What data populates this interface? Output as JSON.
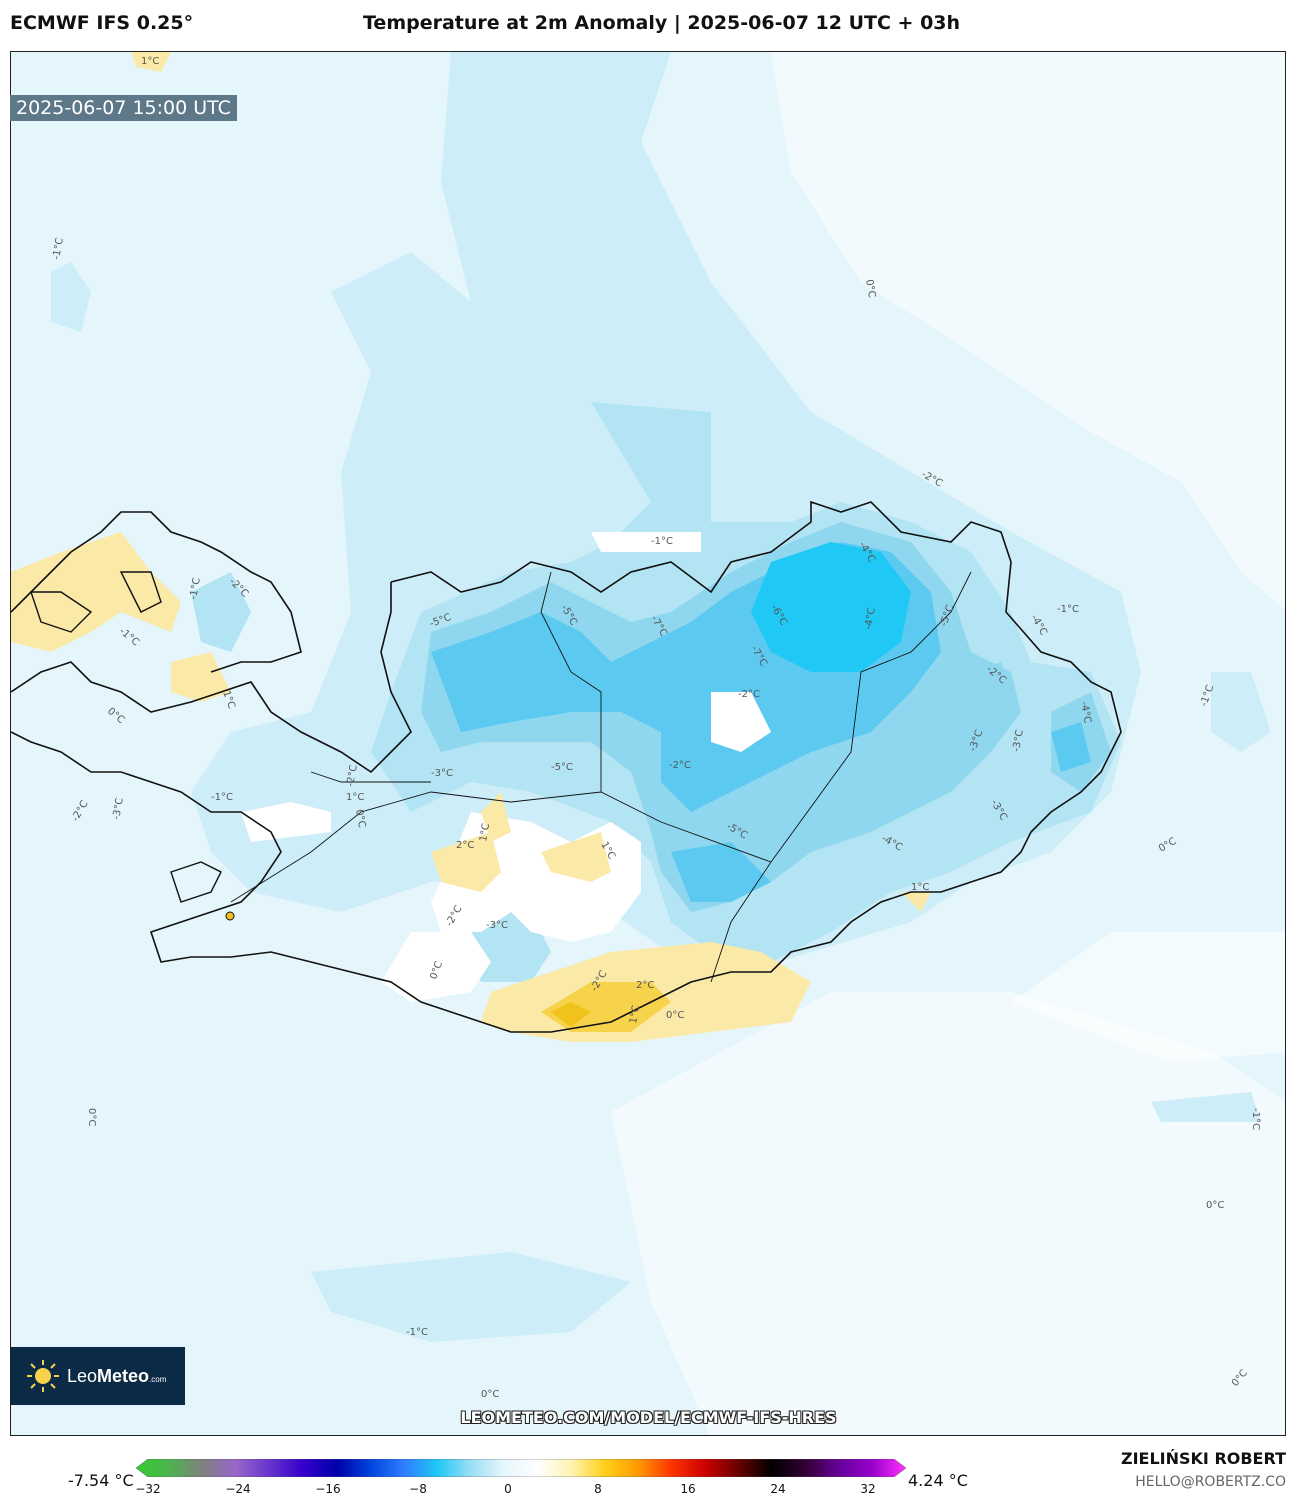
{
  "header": {
    "model": "ECMWF IFS 0.25°",
    "title": "Temperature at 2m Anomaly | 2025-06-07 12 UTC + 03h"
  },
  "map": {
    "valid_time": "2025-06-07 15:00 UTC",
    "contour_labels": [
      "1°C",
      "-1°C",
      "0°C",
      "-1°C",
      "-2°C",
      "-1°C",
      "-2°C",
      "-1°C",
      "1°C",
      "0°C",
      "-1°C",
      "-2°C",
      "-3°C",
      "-2°C",
      "-3°C",
      "-5°C",
      "-5°C",
      "-5°C",
      "-7°C",
      "-6°C",
      "-7°C",
      "-4°C",
      "-5°C",
      "-2°C",
      "-4°C",
      "-1°C",
      "-1°C",
      "-2°C",
      "-3°C",
      "-3°C",
      "-2°C",
      "-3°C",
      "-4°C",
      "-4°C",
      "-5°C",
      "0°C",
      "1°C",
      "2°C",
      "1°C",
      "1°C",
      "-2°C",
      "-3°C",
      "0°C",
      "2°C",
      "1°C",
      "0°C",
      "-2°C",
      "-4°C",
      "1°C",
      "0°C",
      "0°C",
      "-1°C",
      "0°C",
      "-1°C",
      "0°C",
      "0°C"
    ],
    "colors": {
      "ocean_light": "#e4f5fb",
      "cold1": "#cdeef8",
      "cold2": "#b3e4f4",
      "cold3": "#8fd6ef",
      "cold4": "#5ccaf0",
      "cold5": "#1fc8f5",
      "warm1": "#fbe9a8",
      "warm2": "#f7d34c",
      "neutral": "#ffffff"
    }
  },
  "logo": {
    "brand_a": "Leo",
    "brand_b": "Meteo",
    "brand_domain": ".com"
  },
  "footer": {
    "url": "LEOMETEO.COM/MODEL/ECMWF-IFS-HRES",
    "min_value": "-7.54 °C",
    "max_value": "4.24 °C",
    "author": "ZIELIŃSKI ROBERT",
    "email": "HELLO@ROBERTZ.CO"
  },
  "colorbar": {
    "ticks": [
      "−32",
      "−24",
      "−16",
      "−8",
      "0",
      "8",
      "16",
      "24",
      "32"
    ],
    "range": [
      -32,
      32
    ],
    "stops": [
      "#33cc33",
      "#4db34d",
      "#808080",
      "#9966cc",
      "#6633cc",
      "#3300cc",
      "#0000aa",
      "#0044dd",
      "#2f7dff",
      "#1fc8f5",
      "#9bdff5",
      "#e6f6fb",
      "#ffffff",
      "#fff3b0",
      "#ffd11a",
      "#ff9900",
      "#ff3300",
      "#cc0000",
      "#660000",
      "#000000",
      "#330033",
      "#660099",
      "#9900cc",
      "#ff33ff"
    ]
  }
}
